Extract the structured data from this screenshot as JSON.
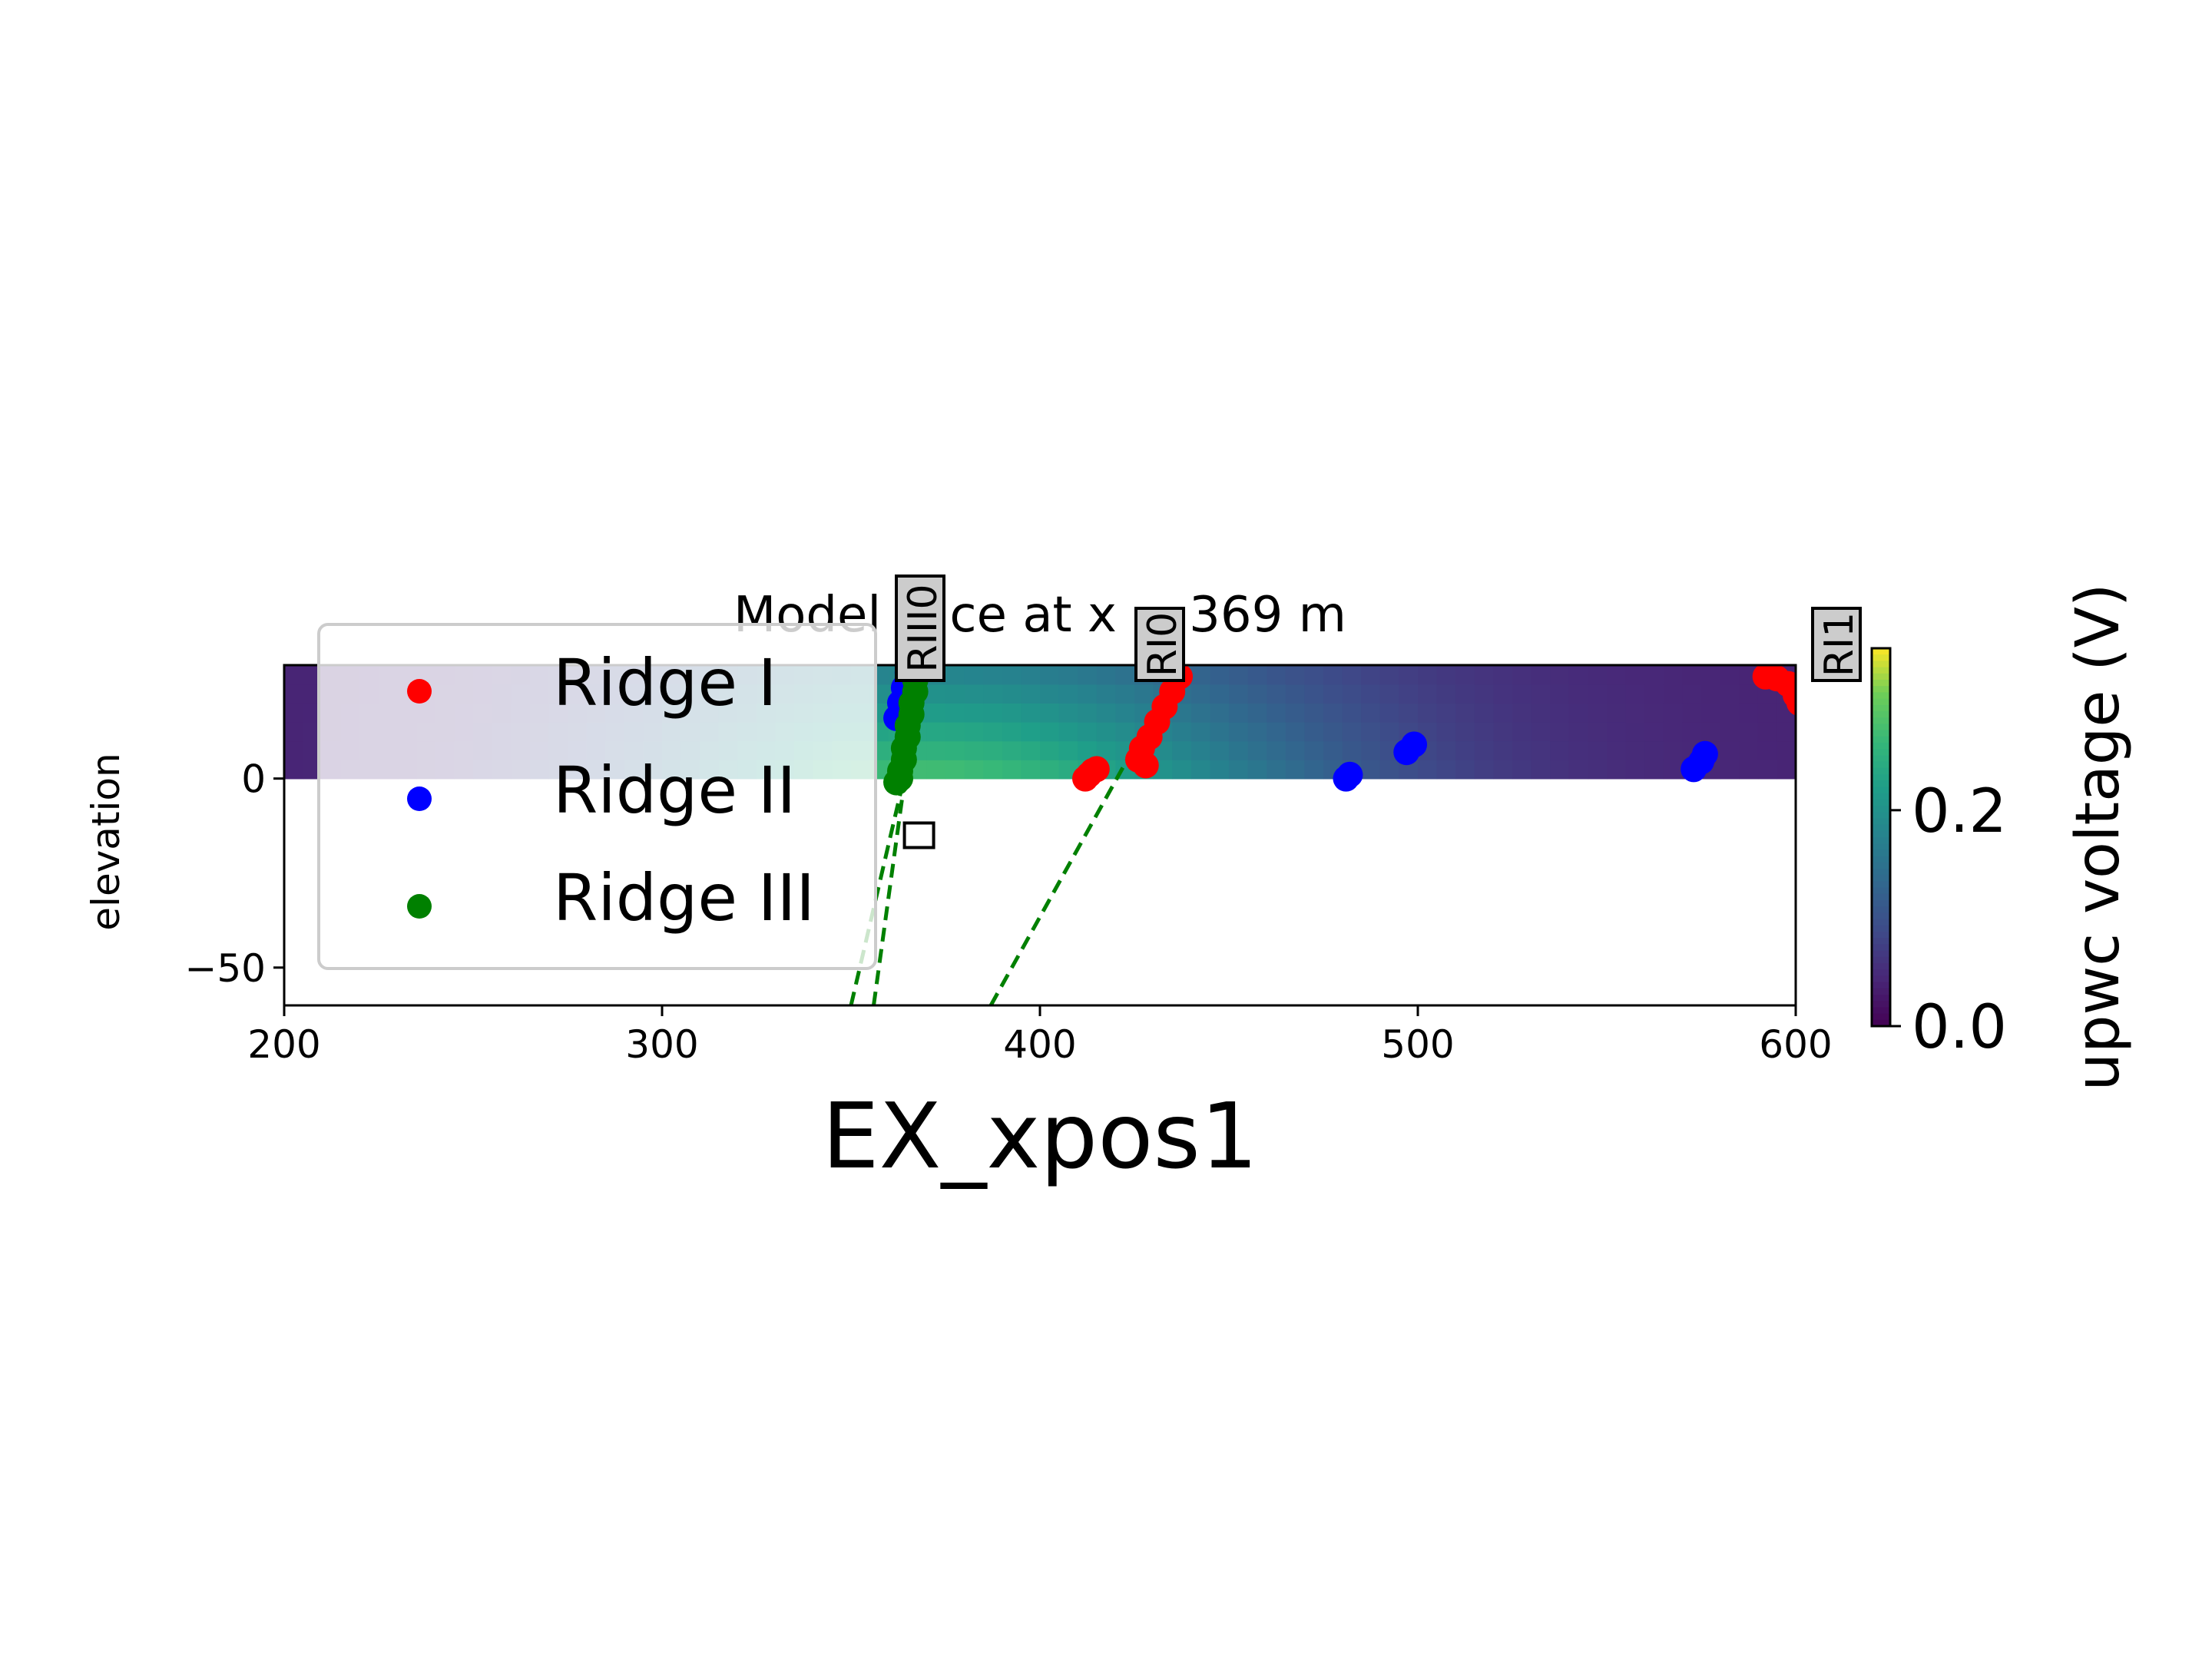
{
  "chart_data": {
    "type": "scatter",
    "title": "Model slice at x = 369 m",
    "xlabel": "EX_xpos1",
    "ylabel": "elevation",
    "xlim": [
      200,
      600
    ],
    "ylim": [
      -60,
      30
    ],
    "xticks": [
      200,
      300,
      400,
      500,
      600
    ],
    "yticks": [
      0,
      -50
    ],
    "grid": false,
    "legend_position": "upper-left",
    "heatmap": {
      "x_range": [
        200,
        600
      ],
      "y_range": [
        0,
        30
      ],
      "peak_x": 369,
      "peak_value": 0.28,
      "base_value": 0.04,
      "colormap": "viridis"
    },
    "colorbar": {
      "label": "upwc voltage (V)",
      "min": 0.0,
      "max": 0.35,
      "ticks": [
        0.0,
        0.2
      ]
    },
    "series": [
      {
        "name": "Ridge I",
        "color": "#ff0000",
        "points": [
          [
            412,
            0
          ],
          [
            413,
            1
          ],
          [
            414,
            2
          ],
          [
            415,
            2.5
          ],
          [
            428,
            3.5
          ],
          [
            426,
            5
          ],
          [
            427,
            8
          ],
          [
            429,
            11
          ],
          [
            431,
            15
          ],
          [
            433,
            19
          ],
          [
            435,
            23
          ],
          [
            437,
            27
          ],
          [
            592,
            27
          ],
          [
            595,
            26.5
          ],
          [
            598,
            25
          ],
          [
            600,
            22
          ],
          [
            601,
            20
          ]
        ]
      },
      {
        "name": "Ridge II",
        "color": "#0000ff",
        "points": [
          [
            362,
            16
          ],
          [
            363,
            20
          ],
          [
            364,
            24
          ],
          [
            365,
            28
          ],
          [
            481,
            0
          ],
          [
            482,
            1
          ],
          [
            497,
            7
          ],
          [
            499,
            9
          ],
          [
            573,
            2.5
          ],
          [
            575,
            4.5
          ],
          [
            576,
            6.5
          ]
        ]
      },
      {
        "name": "Ridge III",
        "color": "#008000",
        "points": [
          [
            362,
            -1
          ],
          [
            363,
            0
          ],
          [
            363,
            2
          ],
          [
            364,
            5
          ],
          [
            364,
            8
          ],
          [
            365,
            11
          ],
          [
            365,
            14
          ],
          [
            366,
            17
          ],
          [
            366,
            20
          ],
          [
            367,
            23
          ],
          [
            367,
            26
          ],
          [
            368,
            28
          ]
        ]
      }
    ],
    "dashed_lines": [
      {
        "color": "#008000",
        "from": [
          350,
          -60
        ],
        "to": [
          364,
          0
        ]
      },
      {
        "color": "#008000",
        "from": [
          356,
          -60
        ],
        "to": [
          367,
          20
        ]
      },
      {
        "color": "#008000",
        "from": [
          387,
          -60
        ],
        "to": [
          437,
          30
        ]
      }
    ],
    "label_boxes": [
      "RIII0",
      "RI0",
      "RI1"
    ],
    "marker_square": {
      "x": 368,
      "y": -15
    }
  }
}
